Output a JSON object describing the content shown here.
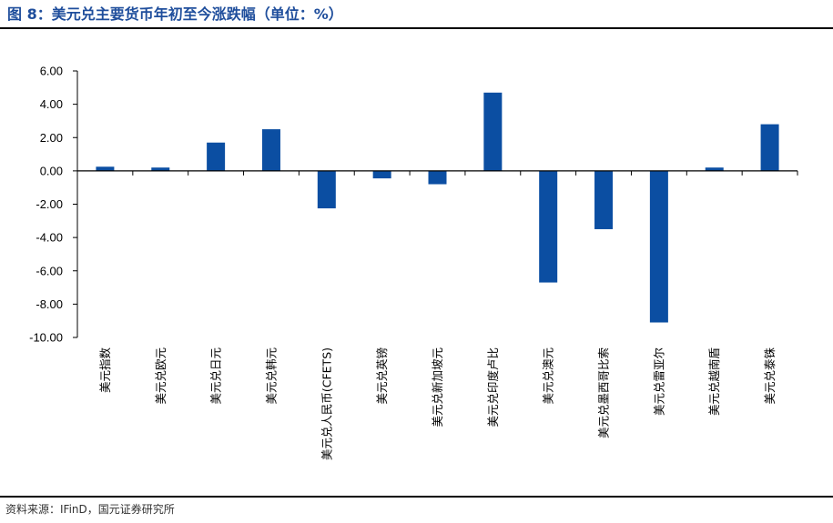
{
  "header": {
    "title": "图 8：美元兑主要货币年初至今涨跌幅（单位：%）"
  },
  "footer": {
    "source": "资料来源：IFinD，国元证券研究所"
  },
  "colors": {
    "bar": "#0b4ea2",
    "title": "#1f4e9c",
    "axis": "#000000"
  },
  "chart_data": {
    "type": "bar",
    "title": "",
    "xlabel": "",
    "ylabel": "",
    "ylim": [
      -10,
      6
    ],
    "yticks": [
      "6.00",
      "4.00",
      "2.00",
      "0.00",
      "-2.00",
      "-4.00",
      "-6.00",
      "-8.00",
      "-10.00"
    ],
    "grid": false,
    "legend": "none",
    "categories": [
      "美元指数",
      "美元兑欧元",
      "美元兑日元",
      "美元兑韩元",
      "美元兑人民币(CFETS)",
      "美元兑英镑",
      "美元兑新加坡元",
      "美元兑印度卢比",
      "美元兑澳元",
      "美元兑墨西哥比索",
      "美元兑雷亚尔",
      "美元兑越南盾",
      "美元兑泰铢"
    ],
    "values": [
      0.25,
      0.2,
      1.7,
      2.5,
      -2.25,
      -0.45,
      -0.8,
      4.7,
      -6.7,
      -3.5,
      -9.1,
      0.2,
      2.8
    ]
  }
}
